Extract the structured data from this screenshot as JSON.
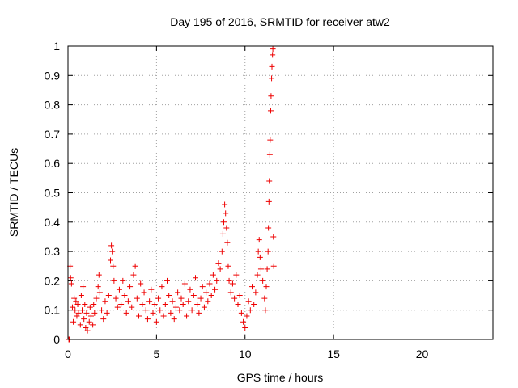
{
  "chart_data": {
    "type": "scatter",
    "title": "Day 195 of 2016, SRMTID for receiver atw2",
    "xlabel": "GPS time / hours",
    "ylabel": "SRMTID / TECUs",
    "xlim": [
      0,
      24
    ],
    "ylim": [
      0,
      1
    ],
    "xticks": [
      0,
      5,
      10,
      15,
      20
    ],
    "yticks": [
      0,
      0.1,
      0.2,
      0.3,
      0.4,
      0.5,
      0.6,
      0.7,
      0.8,
      0.9,
      1
    ],
    "xtick_labels": [
      "0",
      "5",
      "10",
      "15",
      "20"
    ],
    "ytick_labels": [
      "0",
      "0.1",
      "0.2",
      "0.3",
      "0.4",
      "0.5",
      "0.6",
      "0.7",
      "0.8",
      "0.9",
      "1"
    ],
    "grid": true,
    "marker": "+",
    "color": "#ee0000",
    "series": [
      {
        "name": "SRMTID",
        "points": [
          [
            0.05,
            0.0
          ],
          [
            0.08,
            0.0
          ],
          [
            0.12,
            0.25
          ],
          [
            0.15,
            0.21
          ],
          [
            0.2,
            0.19
          ],
          [
            0.25,
            0.11
          ],
          [
            0.3,
            0.06
          ],
          [
            0.35,
            0.14
          ],
          [
            0.4,
            0.1
          ],
          [
            0.45,
            0.13
          ],
          [
            0.5,
            0.08
          ],
          [
            0.55,
            0.12
          ],
          [
            0.6,
            0.09
          ],
          [
            0.7,
            0.05
          ],
          [
            0.75,
            0.15
          ],
          [
            0.8,
            0.1
          ],
          [
            0.85,
            0.18
          ],
          [
            0.9,
            0.07
          ],
          [
            0.95,
            0.12
          ],
          [
            1.0,
            0.04
          ],
          [
            1.05,
            0.09
          ],
          [
            1.1,
            0.03
          ],
          [
            1.2,
            0.06
          ],
          [
            1.25,
            0.11
          ],
          [
            1.3,
            0.08
          ],
          [
            1.4,
            0.05
          ],
          [
            1.45,
            0.12
          ],
          [
            1.5,
            0.09
          ],
          [
            1.6,
            0.14
          ],
          [
            1.7,
            0.18
          ],
          [
            1.75,
            0.22
          ],
          [
            1.8,
            0.16
          ],
          [
            1.9,
            0.1
          ],
          [
            2.0,
            0.07
          ],
          [
            2.1,
            0.13
          ],
          [
            2.2,
            0.09
          ],
          [
            2.3,
            0.15
          ],
          [
            2.4,
            0.27
          ],
          [
            2.45,
            0.32
          ],
          [
            2.5,
            0.3
          ],
          [
            2.55,
            0.25
          ],
          [
            2.6,
            0.2
          ],
          [
            2.7,
            0.14
          ],
          [
            2.8,
            0.11
          ],
          [
            2.9,
            0.17
          ],
          [
            3.0,
            0.12
          ],
          [
            3.1,
            0.2
          ],
          [
            3.2,
            0.15
          ],
          [
            3.3,
            0.09
          ],
          [
            3.4,
            0.13
          ],
          [
            3.5,
            0.18
          ],
          [
            3.6,
            0.11
          ],
          [
            3.7,
            0.22
          ],
          [
            3.8,
            0.25
          ],
          [
            3.9,
            0.14
          ],
          [
            4.0,
            0.08
          ],
          [
            4.1,
            0.19
          ],
          [
            4.2,
            0.12
          ],
          [
            4.3,
            0.16
          ],
          [
            4.4,
            0.1
          ],
          [
            4.5,
            0.07
          ],
          [
            4.6,
            0.13
          ],
          [
            4.7,
            0.17
          ],
          [
            4.8,
            0.09
          ],
          [
            4.9,
            0.12
          ],
          [
            5.0,
            0.06
          ],
          [
            5.1,
            0.14
          ],
          [
            5.2,
            0.1
          ],
          [
            5.3,
            0.18
          ],
          [
            5.4,
            0.08
          ],
          [
            5.5,
            0.12
          ],
          [
            5.6,
            0.2
          ],
          [
            5.7,
            0.15
          ],
          [
            5.8,
            0.09
          ],
          [
            5.9,
            0.13
          ],
          [
            6.0,
            0.07
          ],
          [
            6.1,
            0.11
          ],
          [
            6.2,
            0.16
          ],
          [
            6.3,
            0.1
          ],
          [
            6.4,
            0.14
          ],
          [
            6.5,
            0.12
          ],
          [
            6.6,
            0.19
          ],
          [
            6.7,
            0.08
          ],
          [
            6.8,
            0.13
          ],
          [
            6.9,
            0.17
          ],
          [
            7.0,
            0.1
          ],
          [
            7.1,
            0.15
          ],
          [
            7.2,
            0.21
          ],
          [
            7.3,
            0.12
          ],
          [
            7.4,
            0.09
          ],
          [
            7.5,
            0.14
          ],
          [
            7.6,
            0.18
          ],
          [
            7.7,
            0.11
          ],
          [
            7.8,
            0.16
          ],
          [
            7.9,
            0.13
          ],
          [
            8.0,
            0.19
          ],
          [
            8.1,
            0.15
          ],
          [
            8.2,
            0.22
          ],
          [
            8.3,
            0.17
          ],
          [
            8.4,
            0.2
          ],
          [
            8.5,
            0.26
          ],
          [
            8.6,
            0.24
          ],
          [
            8.7,
            0.3
          ],
          [
            8.75,
            0.36
          ],
          [
            8.8,
            0.4
          ],
          [
            8.85,
            0.46
          ],
          [
            8.9,
            0.43
          ],
          [
            8.95,
            0.38
          ],
          [
            9.0,
            0.33
          ],
          [
            9.05,
            0.25
          ],
          [
            9.1,
            0.2
          ],
          [
            9.2,
            0.16
          ],
          [
            9.3,
            0.19
          ],
          [
            9.4,
            0.14
          ],
          [
            9.5,
            0.22
          ],
          [
            9.6,
            0.12
          ],
          [
            9.7,
            0.15
          ],
          [
            9.8,
            0.09
          ],
          [
            9.9,
            0.06
          ],
          [
            10.0,
            0.04
          ],
          [
            10.1,
            0.08
          ],
          [
            10.2,
            0.13
          ],
          [
            10.3,
            0.1
          ],
          [
            10.4,
            0.18
          ],
          [
            10.5,
            0.12
          ],
          [
            10.6,
            0.16
          ],
          [
            10.7,
            0.22
          ],
          [
            10.75,
            0.3
          ],
          [
            10.8,
            0.34
          ],
          [
            10.85,
            0.28
          ],
          [
            10.9,
            0.24
          ],
          [
            11.0,
            0.2
          ],
          [
            11.1,
            0.14
          ],
          [
            11.15,
            0.1
          ],
          [
            11.2,
            0.18
          ],
          [
            11.25,
            0.24
          ],
          [
            11.3,
            0.3
          ],
          [
            11.32,
            0.38
          ],
          [
            11.35,
            0.47
          ],
          [
            11.37,
            0.54
          ],
          [
            11.4,
            0.63
          ],
          [
            11.42,
            0.68
          ],
          [
            11.45,
            0.78
          ],
          [
            11.47,
            0.83
          ],
          [
            11.5,
            0.89
          ],
          [
            11.52,
            0.93
          ],
          [
            11.55,
            0.97
          ],
          [
            11.57,
            0.99
          ],
          [
            11.6,
            0.35
          ],
          [
            11.62,
            0.25
          ]
        ]
      }
    ]
  }
}
